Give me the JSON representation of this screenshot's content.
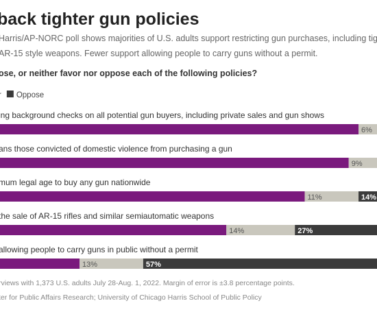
{
  "chart_data": {
    "type": "stacked-bar",
    "title": "back tighter gun policies",
    "subtitle": [
      "Harris/AP-NORC poll shows majorities of U.S. adults support restricting gun purchases, including tighter backg",
      "AR-15 style weapons. Fewer support allowing people to carry guns without a permit."
    ],
    "question": "ose, or neither favor nor oppose each of the following policies?",
    "categories": [
      "ing background checks on all potential gun buyers, including private sales and gun shows",
      "ans those convicted of domestic violence from purchasing a gun",
      "mum legal age to buy any gun nationwide",
      "the sale of AR-15 rifles and similar semiautomatic weapons",
      "allowing people to carry guns in public without a permit"
    ],
    "series": [
      {
        "color": "#7a1a7d",
        "values": [
          86,
          84,
          75,
          59,
          29
        ]
      },
      {
        "name": "r",
        "color": "#c9c7bd",
        "values": [
          6,
          9,
          11,
          14,
          13
        ],
        "value_labels": [
          "6%",
          "9%",
          "11%",
          "14%",
          "13%"
        ]
      },
      {
        "name": "Oppose",
        "color": "#3b3b3b",
        "values": [
          null,
          null,
          14,
          27,
          57
        ],
        "value_labels": [
          null,
          null,
          "14%",
          "27%",
          "57%"
        ]
      }
    ],
    "xlim": [
      0,
      100
    ],
    "notes": [
      "rviews with 1,373 U.S. adults July 28-Aug. 1, 2022. Margin of error is ±3.8 percentage points.",
      "ter for Public Affairs Research; University of Chicago Harris School of Public Policy"
    ]
  }
}
